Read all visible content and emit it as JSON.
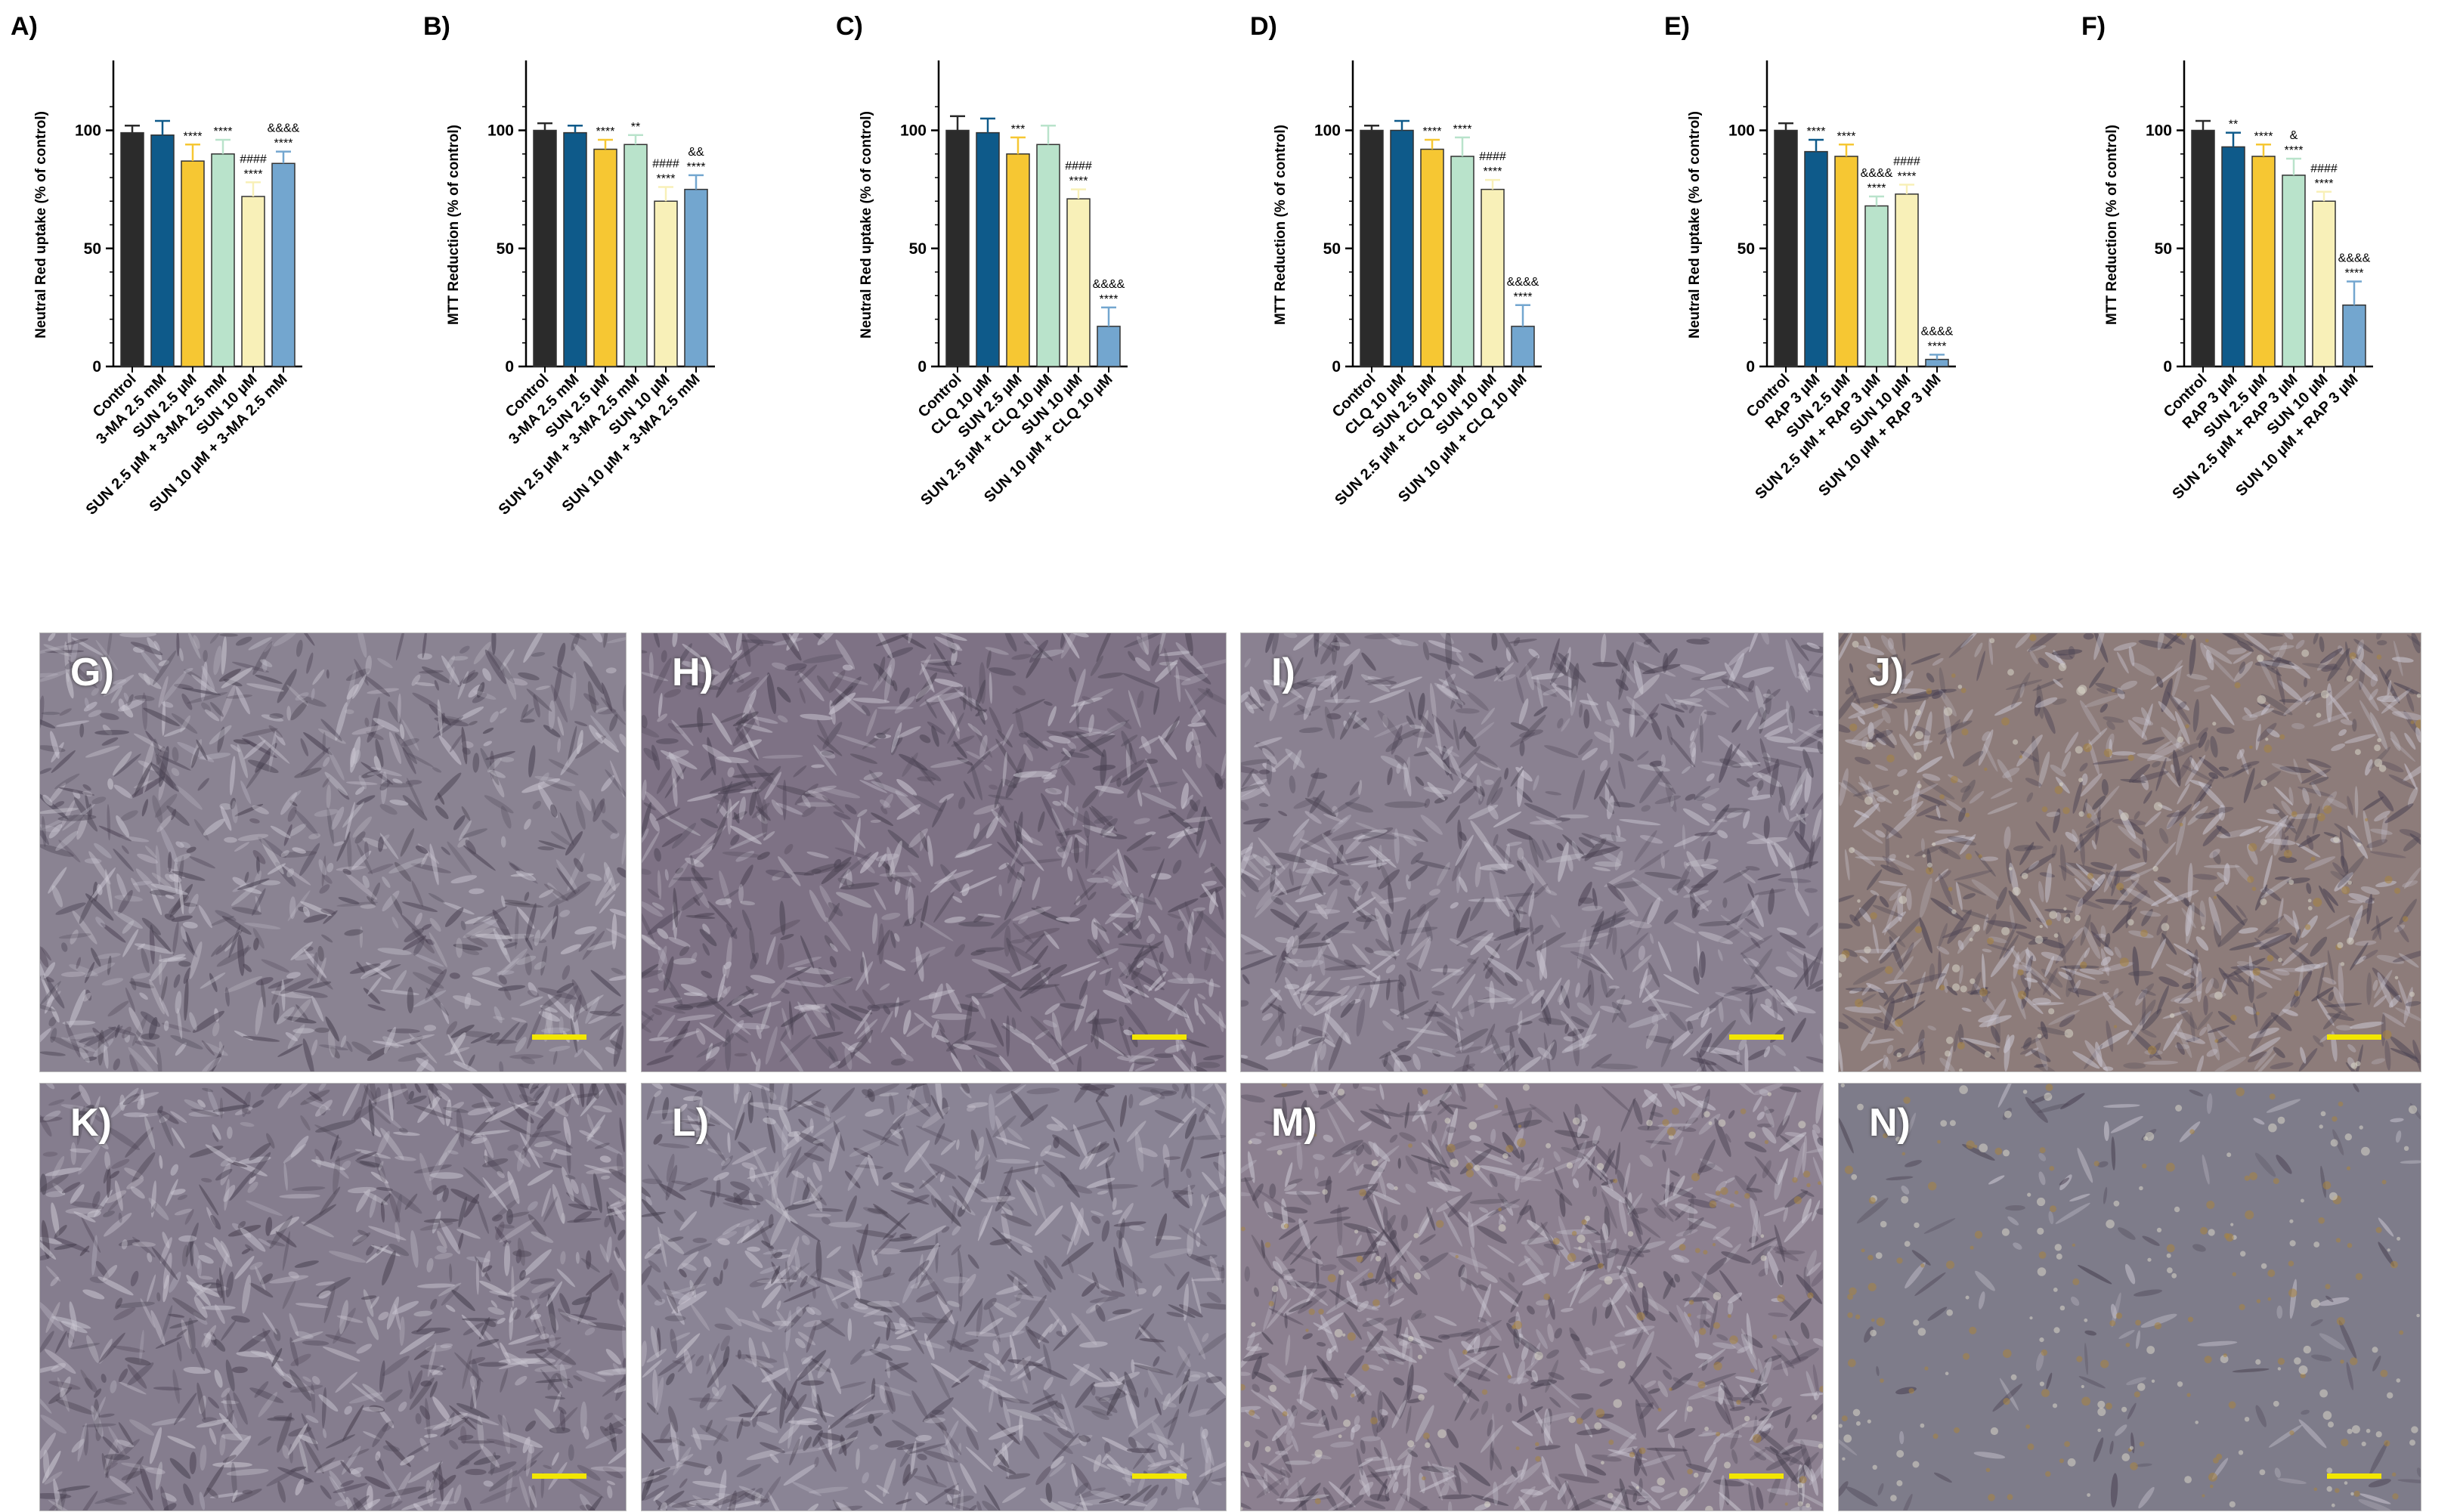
{
  "colors": {
    "black": "#2b2b2b",
    "navy": "#0e5a8a",
    "gold": "#f6c733",
    "mint": "#b9e3cb",
    "cream": "#f8f0b8",
    "sky": "#73a6cf"
  },
  "chart_data": [
    {
      "type": "bar",
      "label": "A)",
      "ylabel": "Neutral Red uptake (% of control)",
      "ylim": [
        0,
        120
      ],
      "yticks": [
        0,
        50,
        100
      ],
      "categories": [
        "Control",
        "3-MA 2.5 mM",
        "SUN 2.5 µM",
        "SUN 2.5 µM + 3-MA 2.5 mM",
        "SUN 10 µM",
        "SUN 10 µM + 3-MA 2.5 mM"
      ],
      "values": [
        99,
        98,
        87,
        90,
        72,
        86
      ],
      "errors": [
        3,
        6,
        7,
        6,
        6,
        5
      ],
      "colors": [
        "black",
        "navy",
        "gold",
        "mint",
        "cream",
        "sky"
      ],
      "annotations": [
        [],
        [],
        [
          "****"
        ],
        [
          "****"
        ],
        [
          "####",
          "****"
        ],
        [
          "&&&&",
          "****"
        ]
      ]
    },
    {
      "type": "bar",
      "label": "B)",
      "ylabel": "MTT Reduction (% of control)",
      "ylim": [
        0,
        120
      ],
      "yticks": [
        0,
        50,
        100
      ],
      "categories": [
        "Control",
        "3-MA 2.5 mM",
        "SUN 2.5 µM",
        "SUN 2.5 µM + 3-MA 2.5 mM",
        "SUN 10 µM",
        "SUN 10 µM + 3-MA 2.5 mM"
      ],
      "values": [
        100,
        99,
        92,
        94,
        70,
        75
      ],
      "errors": [
        3,
        3,
        4,
        4,
        6,
        6
      ],
      "colors": [
        "black",
        "navy",
        "gold",
        "mint",
        "cream",
        "sky"
      ],
      "annotations": [
        [],
        [],
        [
          "****"
        ],
        [
          "**"
        ],
        [
          "####",
          "****"
        ],
        [
          "&&",
          "****"
        ]
      ]
    },
    {
      "type": "bar",
      "label": "C)",
      "ylabel": "Neutral Red uptake (% of control)",
      "ylim": [
        0,
        120
      ],
      "yticks": [
        0,
        50,
        100
      ],
      "categories": [
        "Control",
        "CLQ 10 µM",
        "SUN 2.5 µM",
        "SUN 2.5 µM + CLQ 10 µM",
        "SUN 10 µM",
        "SUN 10 µM + CLQ 10 µM"
      ],
      "values": [
        100,
        99,
        90,
        94,
        71,
        17
      ],
      "errors": [
        6,
        6,
        7,
        8,
        4,
        8
      ],
      "colors": [
        "black",
        "navy",
        "gold",
        "mint",
        "cream",
        "sky"
      ],
      "annotations": [
        [],
        [],
        [
          "***"
        ],
        [],
        [
          "####",
          "****"
        ],
        [
          "&&&&",
          "****"
        ]
      ]
    },
    {
      "type": "bar",
      "label": "D)",
      "ylabel": "MTT Reduction (% of control)",
      "ylim": [
        0,
        120
      ],
      "yticks": [
        0,
        50,
        100
      ],
      "categories": [
        "Control",
        "CLQ 10 µM",
        "SUN 2.5 µM",
        "SUN 2.5 µM + CLQ 10 µM",
        "SUN 10 µM",
        "SUN 10 µM + CLQ 10 µM"
      ],
      "values": [
        100,
        100,
        92,
        89,
        75,
        17
      ],
      "errors": [
        2,
        4,
        4,
        8,
        4,
        9
      ],
      "colors": [
        "black",
        "navy",
        "gold",
        "mint",
        "cream",
        "sky"
      ],
      "annotations": [
        [],
        [],
        [
          "****"
        ],
        [
          "****"
        ],
        [
          "####",
          "****"
        ],
        [
          "&&&&",
          "****"
        ]
      ]
    },
    {
      "type": "bar",
      "label": "E)",
      "ylabel": "Neutral Red uptake (% of control)",
      "ylim": [
        0,
        120
      ],
      "yticks": [
        0,
        50,
        100
      ],
      "categories": [
        "Control",
        "RAP 3 µM",
        "SUN 2.5 µM",
        "SUN 2.5 µM + RAP 3 µM",
        "SUN 10 µM",
        "SUN 10 µM + RAP 3 µM"
      ],
      "values": [
        100,
        91,
        89,
        68,
        73,
        3
      ],
      "errors": [
        3,
        5,
        5,
        4,
        4,
        2
      ],
      "colors": [
        "black",
        "navy",
        "gold",
        "mint",
        "cream",
        "sky"
      ],
      "annotations": [
        [],
        [
          "****"
        ],
        [
          "****"
        ],
        [
          "&&&&",
          "****"
        ],
        [
          "####",
          "****"
        ],
        [
          "&&&&",
          "****"
        ]
      ]
    },
    {
      "type": "bar",
      "label": "F)",
      "ylabel": "MTT Reduction (% of control)",
      "ylim": [
        0,
        120
      ],
      "yticks": [
        0,
        50,
        100
      ],
      "categories": [
        "Control",
        "RAP 3 µM",
        "SUN 2.5 µM",
        "SUN 2.5 µM + RAP 3 µM",
        "SUN 10 µM",
        "SUN 10 µM + RAP 3 µM"
      ],
      "values": [
        100,
        93,
        89,
        81,
        70,
        26
      ],
      "errors": [
        4,
        6,
        5,
        7,
        4,
        10
      ],
      "colors": [
        "black",
        "navy",
        "gold",
        "mint",
        "cream",
        "sky"
      ],
      "annotations": [
        [],
        [
          "**"
        ],
        [
          "****"
        ],
        [
          "&",
          "****"
        ],
        [
          "####",
          "****"
        ],
        [
          "&&&&",
          "****"
        ]
      ]
    }
  ],
  "micrographs": {
    "labels": [
      "G)",
      "H)",
      "I)",
      "J)",
      "K)",
      "L)",
      "M)",
      "N)"
    ],
    "base_colors": [
      "#8a8392",
      "#7e7285",
      "#8a8191",
      "#8d7c7a",
      "#857d8e",
      "#8a8495",
      "#8c8090",
      "#7e7c8a"
    ]
  }
}
